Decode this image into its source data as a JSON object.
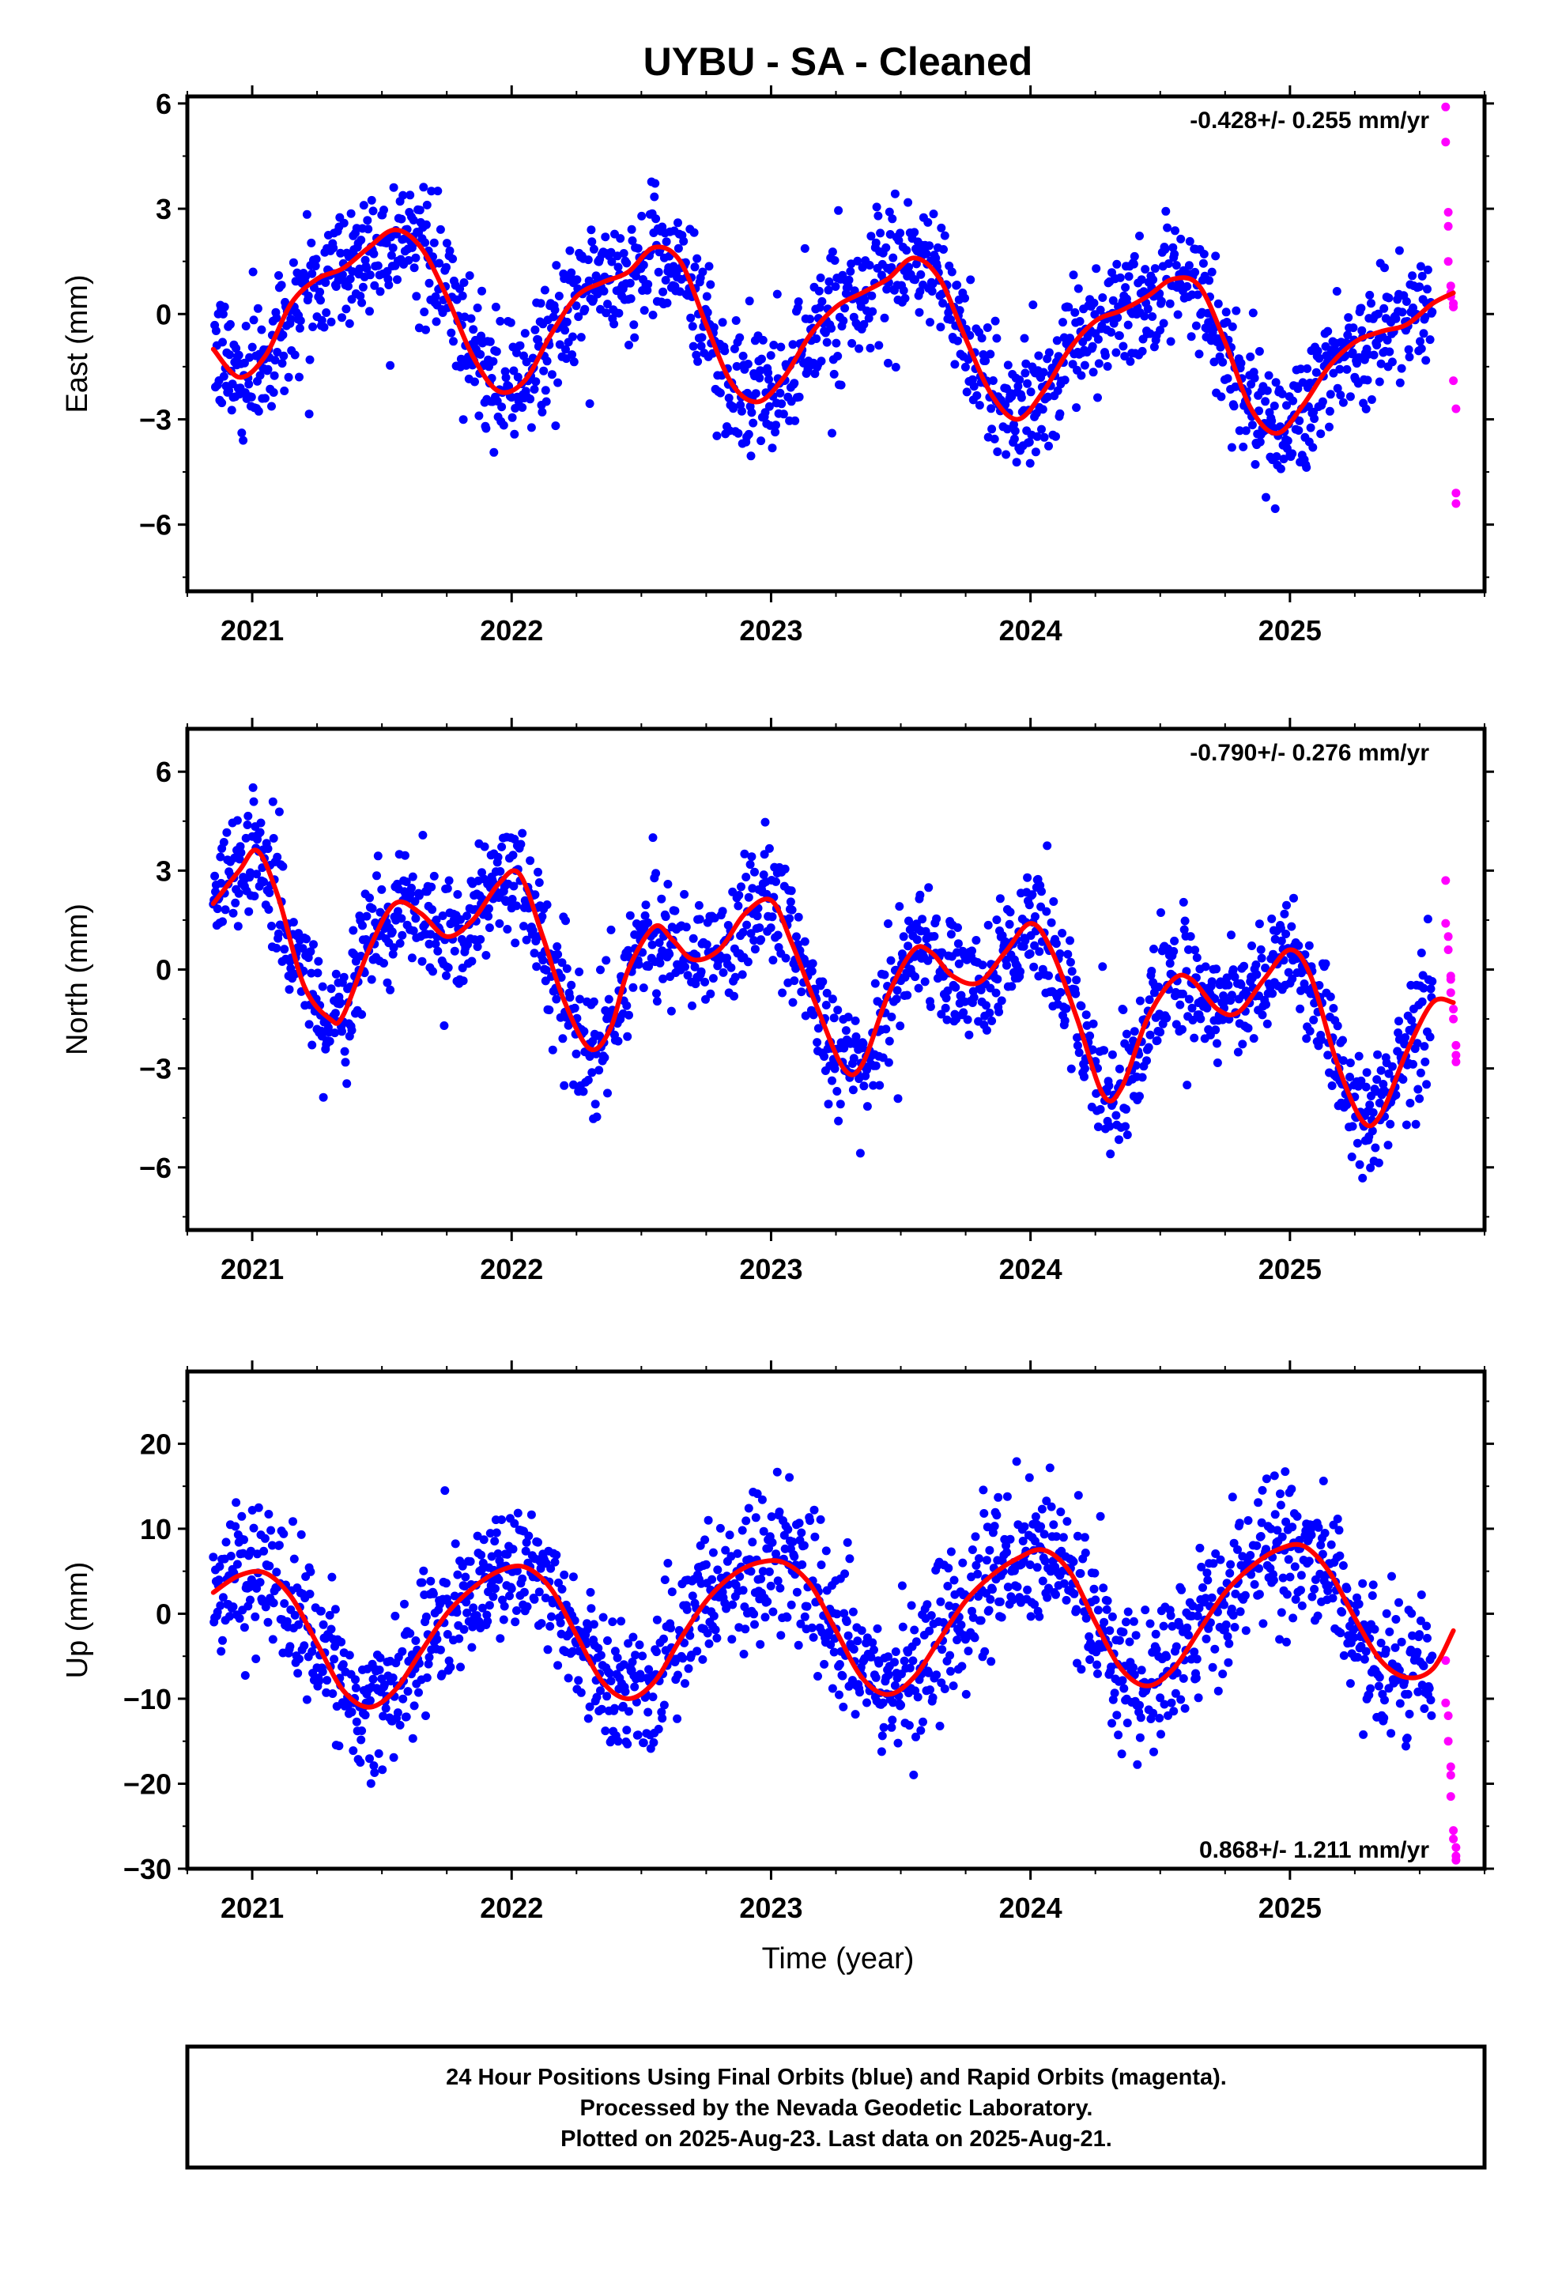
{
  "title": "UYBU  - SA - Cleaned",
  "xlabel": "Time (year)",
  "footer": {
    "line1": "24 Hour Positions Using Final Orbits (blue) and Rapid Orbits (magenta).",
    "line2": "Processed by the Nevada Geodetic Laboratory.",
    "line3": "Plotted on 2025-Aug-23. Last data on 2025-Aug-21."
  },
  "colors": {
    "final": "#0000ff",
    "rapid": "#ff00ff",
    "fit": "#ff0000"
  },
  "chart_data": [
    {
      "type": "scatter",
      "component": "east",
      "ylabel": "East (mm)",
      "rate_text": "-0.428+/- 0.255 mm/yr",
      "rate_position": "top-right",
      "xlim": [
        2020.75,
        2025.75
      ],
      "ylim": [
        -7.9,
        6.2
      ],
      "yticks": [
        -6,
        -3,
        0,
        3,
        6
      ],
      "ytick_labels": [
        "−6",
        "−3",
        "0",
        "3",
        "6"
      ],
      "xticks": [
        2021,
        2022,
        2023,
        2024,
        2025
      ],
      "xtick_labels": [
        "2021",
        "2022",
        "2023",
        "2024",
        "2025"
      ],
      "fit_curve": {
        "x": [
          2020.85,
          2020.95,
          2021.05,
          2021.15,
          2021.25,
          2021.35,
          2021.45,
          2021.55,
          2021.65,
          2021.75,
          2021.85,
          2021.95,
          2022.05,
          2022.15,
          2022.25,
          2022.35,
          2022.45,
          2022.55,
          2022.65,
          2022.75,
          2022.85,
          2022.95,
          2023.05,
          2023.15,
          2023.25,
          2023.35,
          2023.45,
          2023.55,
          2023.65,
          2023.75,
          2023.85,
          2023.95,
          2024.05,
          2024.15,
          2024.25,
          2024.35,
          2024.45,
          2024.55,
          2024.65,
          2024.75,
          2024.85,
          2024.95,
          2025.05,
          2025.15,
          2025.25,
          2025.35,
          2025.45,
          2025.55,
          2025.63
        ],
        "y": [
          -1.0,
          -1.8,
          -1.2,
          0.3,
          1.0,
          1.3,
          1.9,
          2.4,
          1.9,
          0.5,
          -1.2,
          -2.2,
          -1.9,
          -0.6,
          0.5,
          0.9,
          1.2,
          1.9,
          1.5,
          -0.3,
          -2.0,
          -2.5,
          -1.8,
          -0.6,
          0.2,
          0.6,
          1.0,
          1.6,
          1.0,
          -0.7,
          -2.3,
          -3.0,
          -2.2,
          -1.0,
          -0.2,
          0.1,
          0.5,
          1.0,
          0.8,
          -0.8,
          -2.7,
          -3.4,
          -2.6,
          -1.5,
          -0.8,
          -0.5,
          -0.3,
          0.3,
          0.6
        ]
      },
      "final_orbits_scatter_sigma": 0.9,
      "final_orbits_x_range": [
        2020.85,
        2025.55
      ],
      "rapid_orbits": {
        "x": [
          2025.6,
          2025.6,
          2025.61,
          2025.61,
          2025.61,
          2025.62,
          2025.62,
          2025.62,
          2025.63,
          2025.63,
          2025.63,
          2025.64,
          2025.64,
          2025.64
        ],
        "y": [
          5.9,
          4.9,
          2.9,
          2.5,
          1.5,
          0.8,
          0.6,
          0.5,
          0.3,
          0.2,
          -1.9,
          -2.7,
          -5.1,
          -5.4
        ]
      }
    },
    {
      "type": "scatter",
      "component": "north",
      "ylabel": "North (mm)",
      "rate_text": "-0.790+/- 0.276 mm/yr",
      "rate_position": "top-right",
      "xlim": [
        2020.75,
        2025.75
      ],
      "ylim": [
        -7.9,
        7.3
      ],
      "yticks": [
        -6,
        -3,
        0,
        3,
        6
      ],
      "ytick_labels": [
        "−6",
        "−3",
        "0",
        "3",
        "6"
      ],
      "xticks": [
        2021,
        2022,
        2023,
        2024,
        2025
      ],
      "xtick_labels": [
        "2021",
        "2022",
        "2023",
        "2024",
        "2025"
      ],
      "fit_curve": {
        "x": [
          2020.85,
          2020.95,
          2021.02,
          2021.1,
          2021.2,
          2021.3,
          2021.35,
          2021.45,
          2021.55,
          2021.65,
          2021.75,
          2021.85,
          2021.95,
          2022.03,
          2022.12,
          2022.2,
          2022.3,
          2022.38,
          2022.45,
          2022.55,
          2022.62,
          2022.7,
          2022.8,
          2022.9,
          2023.0,
          2023.08,
          2023.18,
          2023.28,
          2023.35,
          2023.45,
          2023.55,
          2023.62,
          2023.7,
          2023.8,
          2023.9,
          2024.0,
          2024.08,
          2024.18,
          2024.28,
          2024.35,
          2024.45,
          2024.55,
          2024.62,
          2024.72,
          2024.8,
          2024.9,
          2025.0,
          2025.08,
          2025.18,
          2025.28,
          2025.35,
          2025.45,
          2025.55,
          2025.63
        ],
        "y": [
          2.0,
          3.0,
          3.6,
          2.2,
          -0.5,
          -1.5,
          -1.4,
          0.6,
          2.0,
          1.7,
          1.0,
          1.5,
          2.6,
          2.9,
          1.0,
          -0.9,
          -2.4,
          -1.8,
          0.0,
          1.3,
          0.9,
          0.3,
          0.6,
          1.7,
          2.1,
          0.8,
          -1.2,
          -3.0,
          -2.9,
          -0.8,
          0.6,
          0.5,
          -0.2,
          -0.4,
          0.5,
          1.4,
          0.6,
          -1.5,
          -3.8,
          -3.6,
          -1.5,
          -0.3,
          -0.3,
          -1.2,
          -1.3,
          -0.3,
          0.6,
          -0.2,
          -2.8,
          -4.6,
          -4.4,
          -2.5,
          -1.0,
          -1.0
        ]
      },
      "final_orbits_scatter_sigma": 0.95,
      "final_orbits_x_range": [
        2020.85,
        2025.55
      ],
      "rapid_orbits": {
        "x": [
          2025.6,
          2025.6,
          2025.61,
          2025.61,
          2025.62,
          2025.62,
          2025.62,
          2025.63,
          2025.63,
          2025.64,
          2025.64,
          2025.64
        ],
        "y": [
          2.7,
          1.4,
          1.0,
          0.6,
          -0.2,
          -0.3,
          -0.7,
          -1.2,
          -1.5,
          -2.3,
          -2.6,
          -2.8
        ]
      }
    },
    {
      "type": "scatter",
      "component": "up",
      "ylabel": "Up (mm)",
      "rate_text": "0.868+/- 1.211 mm/yr",
      "rate_position": "bottom-right",
      "xlim": [
        2020.75,
        2025.75
      ],
      "ylim": [
        -30,
        28.5
      ],
      "yticks": [
        -30,
        -20,
        -10,
        0,
        10,
        20
      ],
      "ytick_labels": [
        "−30",
        "−20",
        "−10",
        "0",
        "10",
        "20"
      ],
      "xticks": [
        2021,
        2022,
        2023,
        2024,
        2025
      ],
      "xtick_labels": [
        "2021",
        "2022",
        "2023",
        "2024",
        "2025"
      ],
      "fit_curve": {
        "x": [
          2020.85,
          2020.95,
          2021.05,
          2021.15,
          2021.25,
          2021.35,
          2021.45,
          2021.55,
          2021.65,
          2021.75,
          2021.85,
          2021.95,
          2022.05,
          2022.15,
          2022.25,
          2022.35,
          2022.45,
          2022.55,
          2022.65,
          2022.75,
          2022.85,
          2022.95,
          2023.05,
          2023.15,
          2023.25,
          2023.35,
          2023.45,
          2023.55,
          2023.65,
          2023.75,
          2023.85,
          2023.95,
          2024.05,
          2024.15,
          2024.25,
          2024.35,
          2024.45,
          2024.55,
          2024.65,
          2024.75,
          2024.85,
          2024.95,
          2025.05,
          2025.15,
          2025.25,
          2025.35,
          2025.45,
          2025.55,
          2025.63
        ],
        "y": [
          2.5,
          4.5,
          4.8,
          2.0,
          -3.5,
          -9.0,
          -11.0,
          -9.0,
          -4.5,
          0.0,
          3.0,
          5.0,
          5.5,
          3.0,
          -2.5,
          -8.0,
          -10.0,
          -8.0,
          -3.0,
          1.5,
          4.5,
          6.0,
          6.0,
          3.5,
          -2.0,
          -7.5,
          -9.5,
          -7.5,
          -3.0,
          1.5,
          4.5,
          6.5,
          7.5,
          5.0,
          -1.0,
          -6.5,
          -8.5,
          -6.5,
          -2.0,
          2.5,
          5.5,
          7.5,
          8.0,
          5.0,
          -0.5,
          -5.5,
          -7.5,
          -6.5,
          -2.0
        ]
      },
      "final_orbits_scatter_sigma": 4.2,
      "final_orbits_x_range": [
        2020.85,
        2025.55
      ],
      "rapid_orbits": {
        "x": [
          2025.6,
          2025.6,
          2025.61,
          2025.61,
          2025.62,
          2025.62,
          2025.62,
          2025.63,
          2025.63,
          2025.64,
          2025.64,
          2025.64
        ],
        "y": [
          -5.5,
          -10.5,
          -12.0,
          -15.0,
          -18.0,
          -19.0,
          -21.5,
          -25.5,
          -26.5,
          -27.5,
          -28.5,
          -29.0
        ]
      }
    }
  ]
}
